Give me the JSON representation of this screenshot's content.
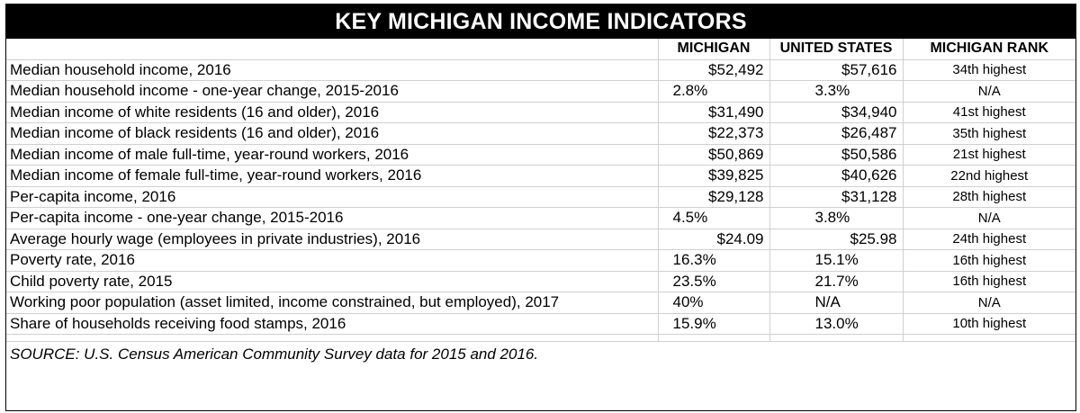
{
  "title": "KEY MICHIGAN INCOME INDICATORS",
  "headers": [
    "",
    "MICHIGAN",
    "UNITED STATES",
    "MICHIGAN RANK"
  ],
  "rows": [
    {
      "label": "Median household income, 2016",
      "michigan": "$52,492",
      "us": "$57,616",
      "rank": "34th highest"
    },
    {
      "label": "Median household income - one-year change, 2015-2016",
      "michigan": "2.8%",
      "us": "3.3%",
      "rank": "N/A"
    },
    {
      "label": "Median income of white residents (16 and older), 2016",
      "michigan": "$31,490",
      "us": "$34,940",
      "rank": "41st highest"
    },
    {
      "label": "Median income of black residents (16 and older), 2016",
      "michigan": "$22,373",
      "us": "$26,487",
      "rank": "35th highest"
    },
    {
      "label": "Median income of male full-time, year-round workers, 2016",
      "michigan": "$50,869",
      "us": "$50,586",
      "rank": "21st highest"
    },
    {
      "label": "Median income of female full-time, year-round workers, 2016",
      "michigan": "$39,825",
      "us": "$40,626",
      "rank": "22nd highest"
    },
    {
      "label": "Per-capita income, 2016",
      "michigan": "$29,128",
      "us": "$31,128",
      "rank": "28th highest"
    },
    {
      "label": "Per-capita income - one-year change, 2015-2016",
      "michigan": "4.5%",
      "us": "3.8%",
      "rank": "N/A"
    },
    {
      "label": "Average hourly wage (employees in private industries), 2016",
      "michigan": "$24.09",
      "us": "$25.98",
      "rank": "24th highest"
    },
    {
      "label": "Poverty rate, 2016",
      "michigan": "16.3%",
      "us": "15.1%",
      "rank": "16th highest"
    },
    {
      "label": "Child poverty rate, 2015",
      "michigan": "23.5%",
      "us": "21.7%",
      "rank": "16th highest"
    },
    {
      "label": "Working poor population (asset limited, income constrained, but employed), 2017",
      "michigan": "40%",
      "us": "N/A",
      "rank": "N/A"
    },
    {
      "label": "Share of households receiving food stamps, 2016",
      "michigan": "15.9%",
      "us": "13.0%",
      "rank": "10th highest"
    }
  ],
  "source": "SOURCE: U.S. Census American Community Survey data for 2015 and 2016."
}
